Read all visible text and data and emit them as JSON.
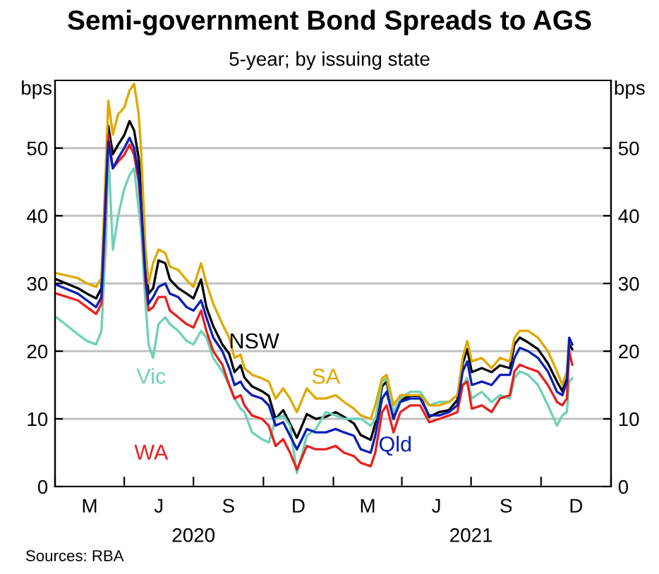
{
  "chart_data": {
    "type": "line",
    "title": "Semi-government Bond Spreads to AGS",
    "subtitle": "5-year; by issuing state",
    "ylabel": "bps",
    "y2label": "bps",
    "x": [
      "2020-01-03",
      "2020-01-31",
      "2020-02-12",
      "2020-02-24",
      "2020-03-02",
      "2020-03-08",
      "2020-03-11",
      "2020-03-17",
      "2020-03-24",
      "2020-04-01",
      "2020-04-08",
      "2020-04-14",
      "2020-04-20",
      "2020-04-23",
      "2020-04-29",
      "2020-05-03",
      "2020-05-09",
      "2020-05-16",
      "2020-05-25",
      "2020-05-31",
      "2020-06-11",
      "2020-06-22",
      "2020-07-01",
      "2020-07-11",
      "2020-07-18",
      "2020-07-27",
      "2020-08-08",
      "2020-08-17",
      "2020-08-24",
      "2020-09-01",
      "2020-09-06",
      "2020-09-16",
      "2020-09-29",
      "2020-10-08",
      "2020-10-17",
      "2020-10-27",
      "2020-11-05",
      "2020-11-14",
      "2020-11-27",
      "2020-12-09",
      "2020-12-22",
      "2021-01-04",
      "2021-01-15",
      "2021-01-28",
      "2021-02-06",
      "2021-02-19",
      "2021-02-25",
      "2021-03-06",
      "2021-03-12",
      "2021-03-21",
      "2021-03-30",
      "2021-04-12",
      "2021-04-25",
      "2021-05-07",
      "2021-05-20",
      "2021-06-02",
      "2021-06-13",
      "2021-06-20",
      "2021-06-26",
      "2021-07-02",
      "2021-07-15",
      "2021-07-28",
      "2021-08-08",
      "2021-08-21",
      "2021-08-27",
      "2021-09-03",
      "2021-09-14",
      "2021-09-27",
      "2021-10-10",
      "2021-10-22",
      "2021-10-29",
      "2021-11-04",
      "2021-11-07",
      "2021-11-11"
    ],
    "series": [
      {
        "name": "NSW",
        "color": "#000000",
        "values": [
          30.6,
          29.3,
          28.5,
          27.8,
          29.3,
          45.8,
          53.3,
          49.1,
          50.5,
          51.9,
          54,
          52.6,
          48.5,
          44.3,
          33.4,
          28.5,
          29.3,
          33.4,
          33,
          30.6,
          29.3,
          28.5,
          27.8,
          30.6,
          26.5,
          23.7,
          21,
          19.6,
          16.9,
          17.9,
          16.1,
          14.8,
          14.1,
          13.4,
          10,
          11.3,
          9.3,
          7.2,
          10.7,
          10,
          10.3,
          11,
          10.3,
          9.3,
          7.6,
          6.9,
          9.3,
          14.8,
          15.5,
          10,
          12.8,
          13.4,
          13.4,
          10.3,
          11,
          11.3,
          12.8,
          18.2,
          20.3,
          16.9,
          17.5,
          16.9,
          17.9,
          17.5,
          21,
          22,
          21.3,
          20.3,
          18.2,
          15.5,
          14.1,
          16.1,
          21,
          20.3
        ]
      },
      {
        "name": "Vic",
        "color": "#6fd1b6",
        "values": [
          25,
          22.5,
          21.5,
          21,
          23,
          36,
          50,
          35,
          40,
          44,
          46,
          47,
          41,
          38,
          27,
          21,
          19,
          24,
          25,
          24,
          23,
          21.5,
          21,
          23,
          22,
          19,
          17,
          15,
          13,
          11.5,
          11,
          8,
          7,
          6.5,
          10,
          10.5,
          9,
          2,
          7.5,
          8.5,
          11,
          10.5,
          10,
          10,
          10,
          9,
          10,
          15.5,
          16,
          11,
          13,
          14,
          14,
          12,
          12.5,
          12.5,
          13.5,
          15,
          16,
          13,
          14,
          12.5,
          13.5,
          13,
          16,
          17,
          16.5,
          15,
          12,
          9,
          10.5,
          11,
          15.5,
          16
        ]
      },
      {
        "name": "SA",
        "color": "#e0a800",
        "values": [
          31.5,
          30.8,
          30,
          29.5,
          30.8,
          48,
          57,
          52,
          55,
          56,
          58.5,
          59.5,
          55,
          50,
          35,
          30,
          33,
          35,
          34.5,
          32.5,
          32,
          30.5,
          29.5,
          33,
          30,
          27,
          24,
          22,
          19,
          19.5,
          17.5,
          16.5,
          16,
          15.5,
          13,
          14.5,
          13,
          11,
          14.5,
          13,
          13,
          13.5,
          12.5,
          11.5,
          10.5,
          10,
          12,
          16,
          16.5,
          12,
          13.5,
          13.5,
          13.5,
          12,
          12,
          12.5,
          13.5,
          19,
          21.5,
          18.5,
          19,
          17.5,
          19,
          18.5,
          22,
          23,
          23,
          22,
          20,
          17,
          15,
          17,
          21.5,
          21
        ]
      },
      {
        "name": "WA",
        "color": "#e8201e",
        "values": [
          28.5,
          27.5,
          26.5,
          25.5,
          27,
          42,
          52,
          47,
          48,
          49,
          50.5,
          49,
          45,
          41,
          30,
          26,
          26.5,
          28,
          28,
          26,
          25,
          24,
          23.5,
          26,
          23,
          20,
          18,
          15,
          13,
          13.5,
          12,
          10.5,
          10,
          9,
          6,
          7,
          5,
          2.5,
          6,
          5.5,
          5.5,
          6,
          5,
          4.5,
          3.5,
          3,
          5,
          11,
          12,
          8,
          11,
          12,
          12,
          9.5,
          10,
          10.5,
          11,
          15,
          15.5,
          11.5,
          12,
          11,
          13,
          13.5,
          17,
          18,
          17.5,
          17,
          15,
          12.5,
          12,
          13,
          20,
          18
        ]
      },
      {
        "name": "Qld",
        "color": "#0a1fb5",
        "values": [
          29.8,
          28.5,
          27.5,
          26.5,
          28,
          44,
          51,
          47,
          48.5,
          50,
          51.5,
          50,
          46,
          42,
          31,
          27,
          28,
          29.5,
          30,
          28.5,
          28,
          26.5,
          26,
          27.5,
          25,
          22,
          20,
          17.5,
          15,
          15.5,
          14.5,
          13.5,
          13,
          12,
          9,
          9.5,
          7.5,
          5.5,
          8.5,
          8,
          8,
          8.5,
          8,
          7.5,
          5.5,
          5,
          7.5,
          13,
          14,
          10,
          12.5,
          13,
          13,
          10.5,
          10.5,
          11,
          12,
          17,
          18.5,
          15,
          15.5,
          15,
          16.5,
          16.5,
          19,
          20.5,
          20,
          19,
          17,
          14,
          13.5,
          15.5,
          22,
          21
        ]
      }
    ],
    "annotations": [
      "M",
      "J",
      "S",
      "D",
      "M",
      "J",
      "S",
      "D",
      "Sources: RBA"
    ],
    "xlim": [
      "2020-01-01",
      "2022-01-01"
    ],
    "xticks": [
      {
        "value": "2020-01-01",
        "label": null
      },
      {
        "value": "2020-04-01",
        "label": null
      },
      {
        "value": "2020-07-01",
        "label": null
      },
      {
        "value": "2020-10-01",
        "label": null
      },
      {
        "value": "2021-01-01",
        "label": null
      },
      {
        "value": "2021-04-01",
        "label": null
      },
      {
        "value": "2021-07-01",
        "label": null
      },
      {
        "value": "2021-10-01",
        "label": null
      },
      {
        "value": "2022-01-01",
        "label": null
      },
      {
        "value": "2020-07-01",
        "label": "2020"
      },
      {
        "value": "2021-07-01",
        "label": "2021"
      }
    ],
    "ylim": [
      0,
      60
    ],
    "yticks": [
      0,
      10,
      20,
      30,
      40,
      50
    ],
    "y2lim": [
      0,
      60
    ],
    "y2ticks": [
      0,
      10,
      20,
      30,
      40,
      50
    ],
    "grid": "y",
    "legend": false,
    "marker": "none",
    "line_style": "solid"
  }
}
